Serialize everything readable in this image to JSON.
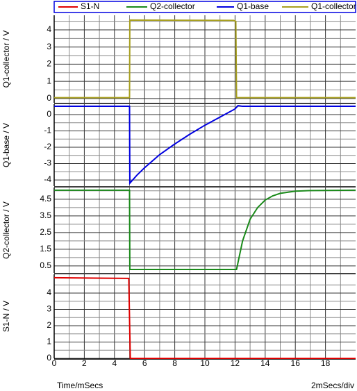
{
  "x_axis": {
    "label": "Time/mSecs",
    "scale": "2mSecs/div",
    "xlim": [
      0,
      20
    ],
    "xticks": [
      0,
      2,
      4,
      6,
      8,
      10,
      12,
      14,
      16,
      18
    ],
    "xminor": [
      1,
      3,
      5,
      7,
      9,
      11,
      13,
      15,
      17,
      19
    ]
  },
  "chart_data": [
    {
      "type": "line",
      "ylabel": "Q1-collector / V",
      "ylim": [
        -0.25,
        4.85
      ],
      "yticks": [
        0,
        1,
        2,
        3,
        4
      ],
      "yminor": [
        0.5,
        1.5,
        2.5,
        3.5,
        4.5
      ],
      "series": [
        {
          "name": "Q1-collector",
          "color": "#a8a020",
          "x": [
            0,
            5,
            5.02,
            11.9,
            12.05,
            12.1,
            20
          ],
          "values": [
            0.05,
            0.05,
            4.57,
            4.55,
            4.5,
            0.05,
            0.05
          ]
        }
      ]
    },
    {
      "type": "line",
      "ylabel": "Q1-base / V",
      "ylim": [
        -4.38,
        0.64
      ],
      "yticks": [
        0,
        -1,
        -2,
        -3,
        -4
      ],
      "yminor": [
        0.5,
        -0.5,
        -1.5,
        -2.5,
        -3.5
      ],
      "series": [
        {
          "name": "Q1-base",
          "color": "#0000e0",
          "x": [
            0,
            5,
            5.02,
            5.5,
            6,
            7,
            8,
            9,
            10,
            11,
            12,
            12.2,
            12.5,
            20
          ],
          "values": [
            0.51,
            0.51,
            -4.2,
            -3.7,
            -3.25,
            -2.45,
            -1.8,
            -1.2,
            -0.65,
            -0.15,
            0.35,
            0.55,
            0.51,
            0.51
          ]
        }
      ]
    },
    {
      "type": "line",
      "ylabel": "Q2-collector / V",
      "ylim": [
        0.08,
        5.2
      ],
      "yticks": [
        4.5,
        3.5,
        2.5,
        1.5,
        0.5
      ],
      "yminor": [
        5,
        4,
        3,
        2,
        1
      ],
      "series": [
        {
          "name": "Q2-collector",
          "color": "#1a8a1a",
          "x": [
            0,
            5,
            5.02,
            12.1,
            12.5,
            13,
            13.5,
            14,
            14.5,
            15,
            16,
            17,
            20
          ],
          "values": [
            5.04,
            5.04,
            0.29,
            0.29,
            2.0,
            3.3,
            4.0,
            4.45,
            4.7,
            4.85,
            4.98,
            5.02,
            5.04
          ]
        }
      ]
    },
    {
      "type": "line",
      "ylabel": "S1-N / V",
      "ylim": [
        0,
        5.15
      ],
      "yticks": [
        0,
        1,
        2,
        3,
        4
      ],
      "yminor": [
        0.5,
        1.5,
        2.5,
        3.5,
        4.5
      ],
      "series": [
        {
          "name": "S1-N",
          "color": "#e00000",
          "x": [
            0,
            4.95,
            5.05,
            20
          ],
          "values": [
            4.94,
            4.9,
            0,
            0
          ]
        }
      ]
    }
  ]
}
